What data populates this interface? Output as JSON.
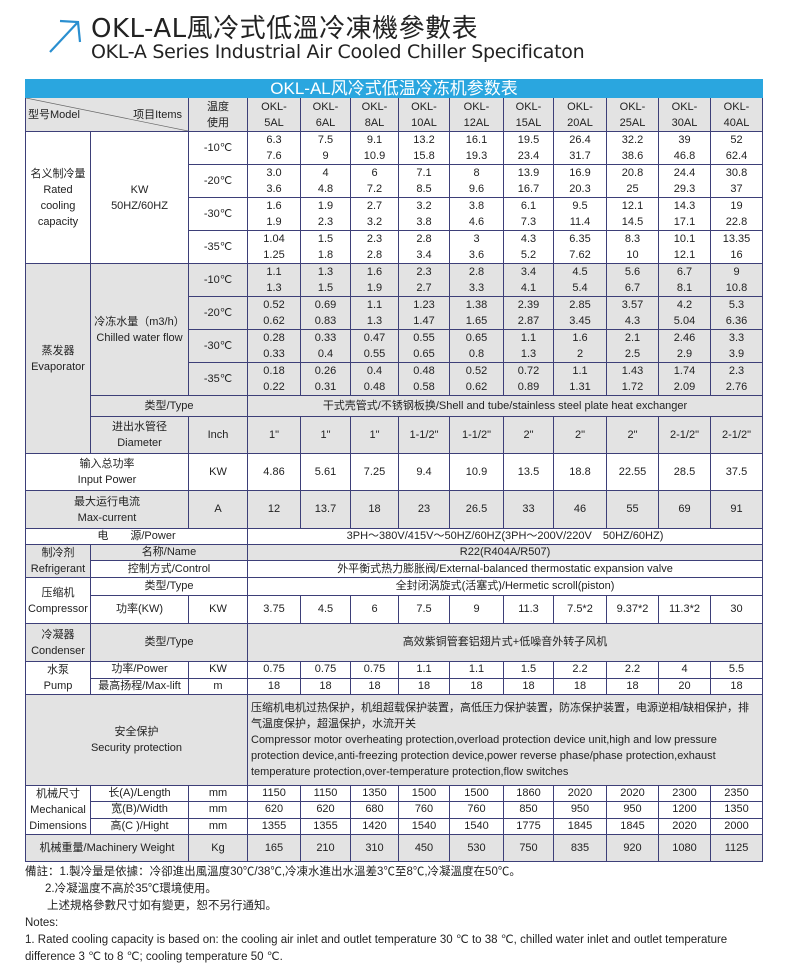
{
  "header": {
    "title_cn": "OKL-AL風冷式低溫冷凍機參數表",
    "title_en": "OKL-A Series Industrial Air Cooled Chiller Specificaton",
    "accent_color": "#2aa6df",
    "icon": "arrow-up-right-icon"
  },
  "table": {
    "title": "OKL-AL风冷式低温冷冻机参数表",
    "model_label": "型号Model",
    "items_label": "项目Items",
    "temp_label": [
      "温度",
      "使用"
    ],
    "models": [
      [
        "OKL-",
        "5AL"
      ],
      [
        "OKL-",
        "6AL"
      ],
      [
        "OKL-",
        "8AL"
      ],
      [
        "OKL-",
        "10AL"
      ],
      [
        "OKL-",
        "12AL"
      ],
      [
        "OKL-",
        "15AL"
      ],
      [
        "OKL-",
        "20AL"
      ],
      [
        "OKL-",
        "25AL"
      ],
      [
        "OKL-",
        "30AL"
      ],
      [
        "OKL-",
        "40AL"
      ]
    ],
    "cooling": {
      "label": [
        "名义制冷量",
        "Rated",
        "cooling",
        "capacity"
      ],
      "unit": [
        "KW",
        "50HZ/60HZ"
      ],
      "rows": [
        {
          "temp": "-10℃",
          "values": [
            [
              "6.3",
              "7.6"
            ],
            [
              "7.5",
              "9"
            ],
            [
              "9.1",
              "10.9"
            ],
            [
              "13.2",
              "15.8"
            ],
            [
              "16.1",
              "19.3"
            ],
            [
              "19.5",
              "23.4"
            ],
            [
              "26.4",
              "31.7"
            ],
            [
              "32.2",
              "38.6"
            ],
            [
              "39",
              "46.8"
            ],
            [
              "52",
              "62.4"
            ]
          ]
        },
        {
          "temp": "-20℃",
          "values": [
            [
              "3.0",
              "3.6"
            ],
            [
              "4",
              "4.8"
            ],
            [
              "6",
              "7.2"
            ],
            [
              "7.1",
              "8.5"
            ],
            [
              "8",
              "9.6"
            ],
            [
              "13.9",
              "16.7"
            ],
            [
              "16.9",
              "20.3"
            ],
            [
              "20.8",
              "25"
            ],
            [
              "24.4",
              "29.3"
            ],
            [
              "30.8",
              "37"
            ]
          ]
        },
        {
          "temp": "-30℃",
          "values": [
            [
              "1.6",
              "1.9"
            ],
            [
              "1.9",
              "2.3"
            ],
            [
              "2.7",
              "3.2"
            ],
            [
              "3.2",
              "3.8"
            ],
            [
              "3.8",
              "4.6"
            ],
            [
              "6.1",
              "7.3"
            ],
            [
              "9.5",
              "11.4"
            ],
            [
              "12.1",
              "14.5"
            ],
            [
              "14.3",
              "17.1"
            ],
            [
              "19",
              "22.8"
            ]
          ]
        },
        {
          "temp": "-35℃",
          "values": [
            [
              "1.04",
              "1.25"
            ],
            [
              "1.5",
              "1.8"
            ],
            [
              "2.3",
              "2.8"
            ],
            [
              "2.8",
              "3.4"
            ],
            [
              "3",
              "3.6"
            ],
            [
              "4.3",
              "5.2"
            ],
            [
              "6.35",
              "7.62"
            ],
            [
              "8.3",
              "10"
            ],
            [
              "10.1",
              "12.1"
            ],
            [
              "13.35",
              "16"
            ]
          ]
        }
      ]
    },
    "evaporator": {
      "label": [
        "蒸发器",
        "Evaporator"
      ],
      "flow_label": [
        "冷冻水量（m3/h）",
        "Chilled water flow"
      ],
      "rows": [
        {
          "temp": "-10℃",
          "values": [
            [
              "1.1",
              "1.3"
            ],
            [
              "1.3",
              "1.5"
            ],
            [
              "1.6",
              "1.9"
            ],
            [
              "2.3",
              "2.7"
            ],
            [
              "2.8",
              "3.3"
            ],
            [
              "3.4",
              "4.1"
            ],
            [
              "4.5",
              "5.4"
            ],
            [
              "5.6",
              "6.7"
            ],
            [
              "6.7",
              "8.1"
            ],
            [
              "9",
              "10.8"
            ]
          ]
        },
        {
          "temp": "-20℃",
          "values": [
            [
              "0.52",
              "0.62"
            ],
            [
              "0.69",
              "0.83"
            ],
            [
              "1.1",
              "1.3"
            ],
            [
              "1.23",
              "1.47"
            ],
            [
              "1.38",
              "1.65"
            ],
            [
              "2.39",
              "2.87"
            ],
            [
              "2.85",
              "3.45"
            ],
            [
              "3.57",
              "4.3"
            ],
            [
              "4.2",
              "5.04"
            ],
            [
              "5.3",
              "6.36"
            ]
          ]
        },
        {
          "temp": "-30℃",
          "values": [
            [
              "0.28",
              "0.33"
            ],
            [
              "0.33",
              "0.4"
            ],
            [
              "0.47",
              "0.55"
            ],
            [
              "0.55",
              "0.65"
            ],
            [
              "0.65",
              "0.8"
            ],
            [
              "1.1",
              "1.3"
            ],
            [
              "1.6",
              "2"
            ],
            [
              "2.1",
              "2.5"
            ],
            [
              "2.46",
              "2.9"
            ],
            [
              "3.3",
              "3.9"
            ]
          ]
        },
        {
          "temp": "-35℃",
          "values": [
            [
              "0.18",
              "0.22"
            ],
            [
              "0.26",
              "0.31"
            ],
            [
              "0.4",
              "0.48"
            ],
            [
              "0.48",
              "0.58"
            ],
            [
              "0.52",
              "0.62"
            ],
            [
              "0.72",
              "0.89"
            ],
            [
              "1.1",
              "1.31"
            ],
            [
              "1.43",
              "1.72"
            ],
            [
              "1.74",
              "2.09"
            ],
            [
              "2.3",
              "2.76"
            ]
          ]
        }
      ],
      "type_label": "类型/Type",
      "type_value": "干式壳管式/不锈钢板换/Shell and tube/stainless steel plate heat exchanger",
      "diameter_label": [
        "进出水管径",
        "Diameter"
      ],
      "diameter_unit": "Inch",
      "diameter_values": [
        "1\"",
        "1\"",
        "1\"",
        "1-1/2\"",
        "1-1/2\"",
        "2\"",
        "2\"",
        "2\"",
        "2-1/2\"",
        "2-1/2\""
      ]
    },
    "input_power": {
      "label": [
        "输入总功率",
        "Input Power"
      ],
      "unit": "KW",
      "values": [
        "4.86",
        "5.61",
        "7.25",
        "9.4",
        "10.9",
        "13.5",
        "18.8",
        "22.55",
        "28.5",
        "37.5"
      ]
    },
    "max_current": {
      "label": [
        "最大运行电流",
        "Max-current"
      ],
      "unit": "A",
      "values": [
        "12",
        "13.7",
        "18",
        "23",
        "26.5",
        "33",
        "46",
        "55",
        "69",
        "91"
      ]
    },
    "power": {
      "label": "电　　源/Power",
      "value": "3PH～380V/415V～50HZ/60HZ(3PH～200V/220V　50HZ/60HZ)"
    },
    "refrigerant": {
      "label": [
        "制冷剂",
        "Refrigerant"
      ],
      "name_label": "名称/Name",
      "name_value": "R22(R404A/R507)",
      "control_label": "控制方式/Control",
      "control_value": "外平衡式热力膨胀阀/External-balanced thermostatic expansion valve"
    },
    "compressor": {
      "label": [
        "压缩机",
        "Compressor"
      ],
      "type_label": "类型/Type",
      "type_value": "全封闭涡旋式(活塞式)/Hermetic scroll(piston)",
      "power_label": "功率(KW)",
      "power_unit": "KW",
      "power_values": [
        "3.75",
        "4.5",
        "6",
        "7.5",
        "9",
        "11.3",
        "7.5*2",
        "9.37*2",
        "11.3*2",
        "30"
      ]
    },
    "condenser": {
      "label": [
        "冷凝器",
        "Condenser"
      ],
      "type_label": "类型/Type",
      "type_value": "高效紫铜管套铝翅片式+低噪音外转子风机"
    },
    "pump": {
      "label": [
        "水泵",
        "Pump"
      ],
      "power_label": "功率/Power",
      "power_unit": "KW",
      "power_values": [
        "0.75",
        "0.75",
        "0.75",
        "1.1",
        "1.1",
        "1.5",
        "2.2",
        "2.2",
        "4",
        "5.5"
      ],
      "lift_label": "最高扬程/Max-lift",
      "lift_unit": "m",
      "lift_values": [
        "18",
        "18",
        "18",
        "18",
        "18",
        "18",
        "18",
        "18",
        "20",
        "18"
      ]
    },
    "security": {
      "label": [
        "安全保护",
        "Security protection"
      ],
      "text_cn": "压缩机电机过热保护，机组超载保护装置，高低压力保护装置，防冻保护装置，电源逆相/缺相保护，排气温度保护，超温保护，水流开关",
      "text_en": " Compressor motor overheating protection,overload protection device unit,high and low pressure protection device,anti-freezing protection device,power reverse phase/phase protection,exhaust temperature protection,over-temperature protection,flow switches"
    },
    "dimensions": {
      "label": [
        "机械尺寸",
        "Mechanical",
        "Dimensions"
      ],
      "rows": [
        {
          "label": "长(A)/Length",
          "unit": "mm",
          "values": [
            "1150",
            "1150",
            "1350",
            "1500",
            "1500",
            "1860",
            "2020",
            "2020",
            "2300",
            "2350"
          ]
        },
        {
          "label": "宽(B)/Width",
          "unit": "mm",
          "values": [
            "620",
            "620",
            "680",
            "760",
            "760",
            "850",
            "950",
            "950",
            "1200",
            "1350"
          ]
        },
        {
          "label": "高(C )/Hight",
          "unit": "mm",
          "values": [
            "1355",
            "1355",
            "1420",
            "1540",
            "1540",
            "1775",
            "1845",
            "1845",
            "2020",
            "2000"
          ]
        }
      ]
    },
    "weight": {
      "label": "机械重量/Machinery Weight",
      "unit": "Kg",
      "values": [
        "165",
        "210",
        "310",
        "450",
        "530",
        "750",
        "835",
        "920",
        "1080",
        "1125"
      ]
    }
  },
  "notes": {
    "cn": [
      "備註：1.製冷量是依據：冷卻進出風溫度30℃/38℃,冷凍水進出水溫差3℃至8℃,冷凝溫度在50℃。",
      "2.冷凝溫度不高於35℃環境使用。",
      "上述規格參數尺寸如有變更，恕不另行通知。"
    ],
    "en_title": "Notes:",
    "en": "1. Rated cooling capacity is based on: the cooling air inlet and outlet temperature 30 ℃ to 38 ℃, chilled water inlet and outlet temperature difference 3 ℃ to 8 ℃; cooling temperature 50 ℃."
  }
}
